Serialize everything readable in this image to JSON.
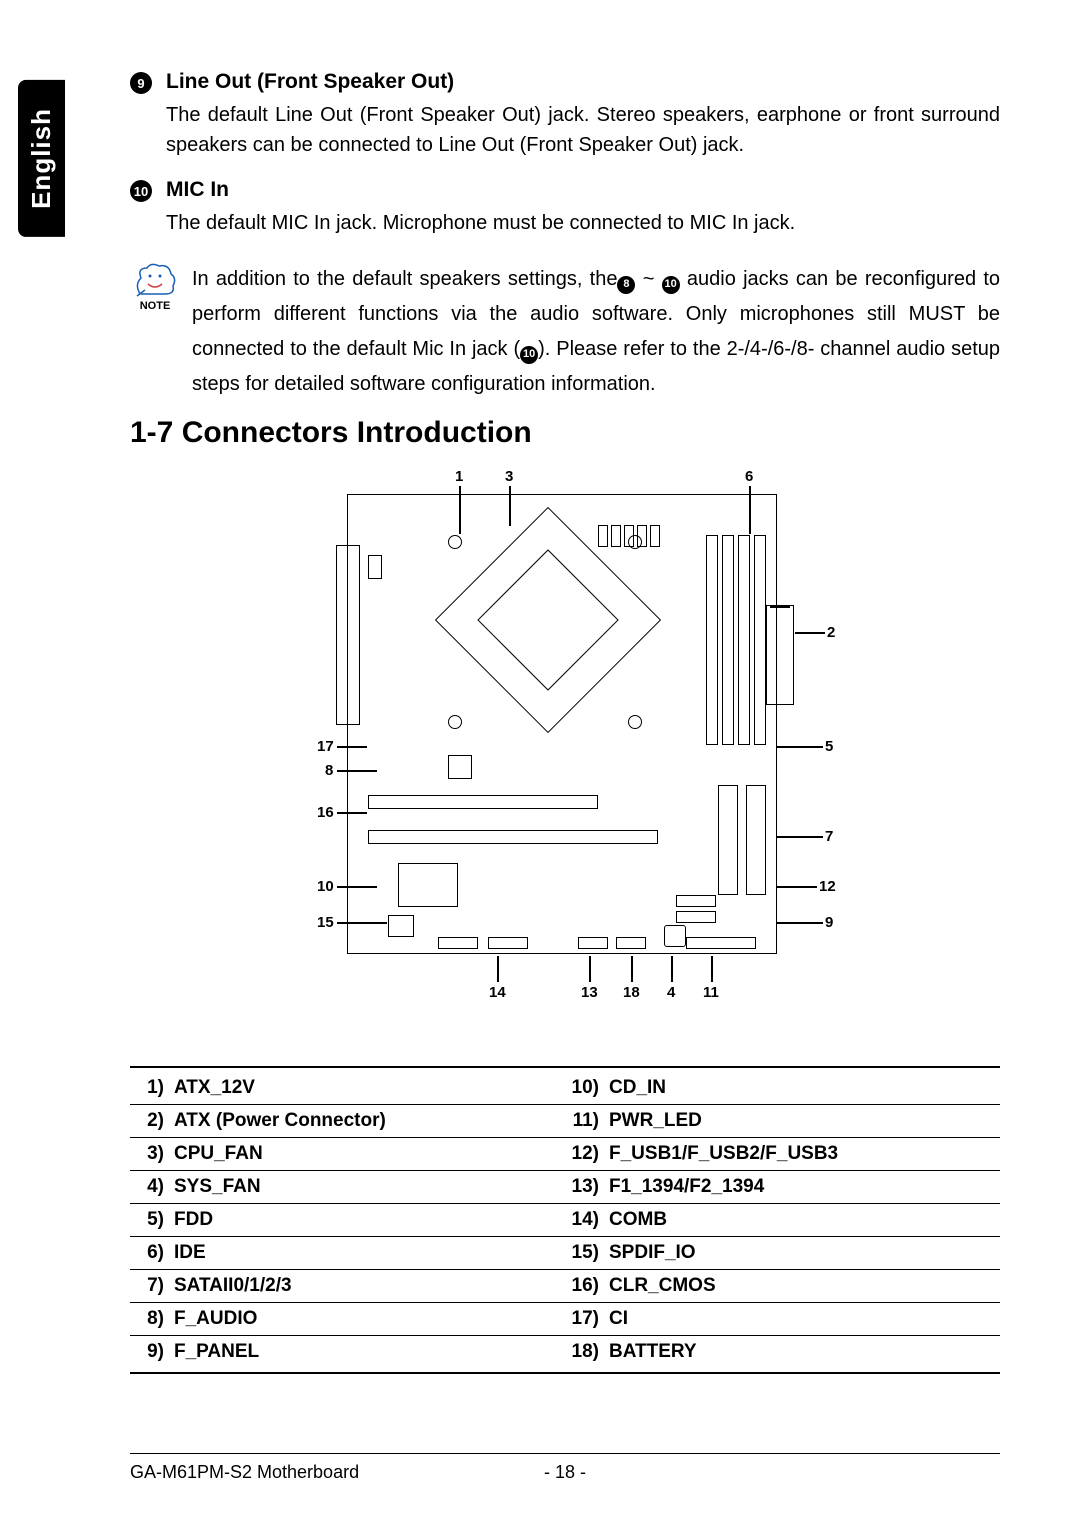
{
  "language_tab": "English",
  "line_out": {
    "bullet": "9",
    "title": "Line Out (Front Speaker Out)",
    "body": "The default Line Out (Front Speaker Out) jack. Stereo speakers, earphone or front surround speakers can be connected to Line Out (Front Speaker Out) jack."
  },
  "mic_in": {
    "bullet": "10",
    "title": "MIC In",
    "body": "The default MIC In jack. Microphone must be connected to MIC In jack."
  },
  "note": {
    "label": "NOTE",
    "pre": "In addition to the default speakers settings, the",
    "b1": "8",
    "tilde": " ~ ",
    "b2": "10",
    "mid": " audio jacks can be reconfigured to perform different functions via the audio software.  Only microphones still MUST be connected to the default Mic In jack (",
    "b3": "10",
    "post": "). Please refer to the 2-/4-/6-/8- channel audio setup steps for detailed software configuration information."
  },
  "section_heading": "1-7    Connectors Introduction",
  "diagram": {
    "callouts": {
      "c1": "1",
      "c3": "3",
      "c6": "6",
      "c2": "2",
      "c17": "17",
      "c5": "5",
      "c8": "8",
      "c16": "16",
      "c7": "7",
      "c10": "10",
      "c12": "12",
      "c15": "15",
      "c9": "9",
      "c14": "14",
      "c13": "13",
      "c18": "18",
      "c4": "4",
      "c11": "11"
    }
  },
  "connectors": {
    "rows": [
      {
        "ln": "1)",
        "ll": "ATX_12V",
        "rn": "10)",
        "rl": "CD_IN"
      },
      {
        "ln": "2)",
        "ll": "ATX (Power Connector)",
        "rn": "11)",
        "rl": "PWR_LED"
      },
      {
        "ln": "3)",
        "ll": "CPU_FAN",
        "rn": "12)",
        "rl": "F_USB1/F_USB2/F_USB3"
      },
      {
        "ln": "4)",
        "ll": "SYS_FAN",
        "rn": "13)",
        "rl": "F1_1394/F2_1394"
      },
      {
        "ln": "5)",
        "ll": "FDD",
        "rn": "14)",
        "rl": "COMB"
      },
      {
        "ln": "6)",
        "ll": "IDE",
        "rn": "15)",
        "rl": "SPDIF_IO"
      },
      {
        "ln": "7)",
        "ll": "SATAII0/1/2/3",
        "rn": "16)",
        "rl": "CLR_CMOS"
      },
      {
        "ln": "8)",
        "ll": "F_AUDIO",
        "rn": "17)",
        "rl": "CI"
      },
      {
        "ln": "9)",
        "ll": "F_PANEL",
        "rn": "18)",
        "rl": "BATTERY"
      }
    ]
  },
  "footer": {
    "left": "GA-M61PM-S2 Motherboard",
    "mid": "- 18 -"
  },
  "colors": {
    "bg": "#ffffff",
    "text": "#000000",
    "tab_bg": "#000000",
    "tab_fg": "#ffffff"
  }
}
